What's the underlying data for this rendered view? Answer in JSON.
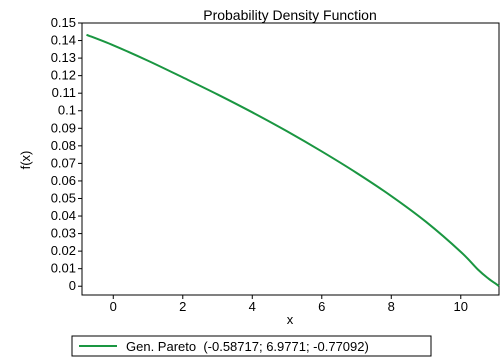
{
  "chart_data": {
    "type": "line",
    "title": "Probability Density Function",
    "xlabel": "x",
    "ylabel": "f(x)",
    "xlim": [
      -0.9,
      11.1
    ],
    "ylim": [
      -0.005,
      0.15
    ],
    "x_ticks": [
      "0",
      "2",
      "4",
      "6",
      "8",
      "10"
    ],
    "y_ticks": [
      "0",
      "0.01",
      "0.02",
      "0.03",
      "0.04",
      "0.05",
      "0.06",
      "0.07",
      "0.08",
      "0.09",
      "0.1",
      "0.11",
      "0.12",
      "0.13",
      "0.14",
      "0.15"
    ],
    "x_tick_values": [
      0,
      2,
      4,
      6,
      8,
      10
    ],
    "y_tick_values": [
      0,
      0.01,
      0.02,
      0.03,
      0.04,
      0.05,
      0.06,
      0.07,
      0.08,
      0.09,
      0.1,
      0.11,
      0.12,
      0.13,
      0.14,
      0.15
    ],
    "grid": false,
    "legend_position": "bottom",
    "series": [
      {
        "name": "Gen. Pareto  (-0.58717; 6.9771; -0.77092)",
        "color": "#1a9641",
        "x": [
          -0.77092,
          0,
          1,
          2,
          3,
          4,
          5,
          6,
          7,
          8,
          9,
          10,
          10.5,
          10.8,
          11.0,
          11.1
        ],
        "y": [
          0.1433,
          0.1373,
          0.1285,
          0.119,
          0.1093,
          0.0991,
          0.0883,
          0.0768,
          0.0646,
          0.0514,
          0.0367,
          0.0196,
          0.0094,
          0.0043,
          0.0015,
          0.0
        ]
      }
    ]
  }
}
